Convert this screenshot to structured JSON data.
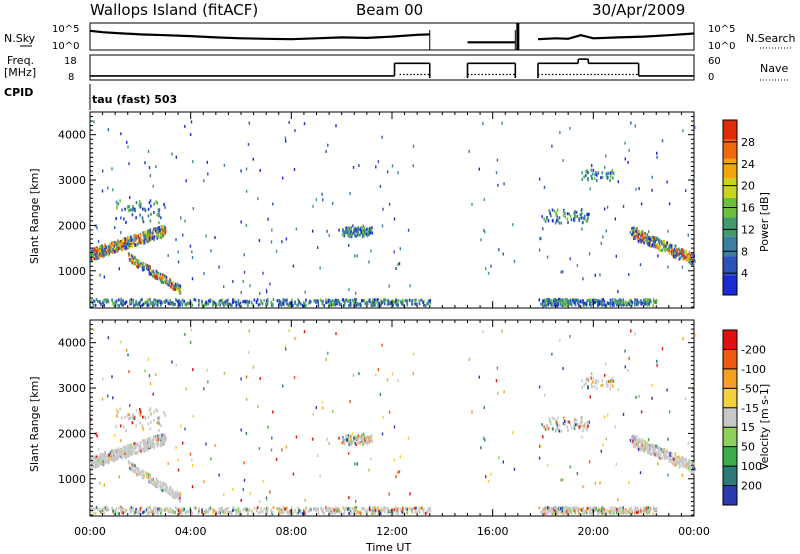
{
  "header": {
    "title": "Wallops Island (fitACF)",
    "beam": "Beam 00",
    "date": "30/Apr/2009"
  },
  "colors": {
    "power_scale": [
      "#1a2bd6",
      "#2f53b8",
      "#3b7ea0",
      "#3f9a6e",
      "#6dbf3c",
      "#c8d51b",
      "#f2a40a",
      "#f06a0a",
      "#e02a0a"
    ],
    "velocity_scale": [
      "#e01010",
      "#f05a10",
      "#f5a020",
      "#f2d040",
      "#c8c8c8",
      "#8fd05a",
      "#3fae4a",
      "#2a7a7a",
      "#2a3ab0"
    ],
    "velocity_ground": "#c8c8c8"
  },
  "chart_data": [
    {
      "type": "line",
      "name": "n-sky-n-search",
      "left_label": "N.Sky",
      "right_label": "N.Search",
      "left_ticks": [
        "10^5",
        "10^0"
      ],
      "right_ticks": [
        "10^5",
        "10^0"
      ],
      "x_range": [
        0,
        24
      ],
      "segments": [
        {
          "x": [
            0.0,
            0.5,
            1.0,
            2.0,
            3.0,
            4.0,
            5.0,
            6.0,
            7.0,
            8.0,
            9.0,
            10.0,
            11.0,
            12.0,
            13.0,
            13.5
          ],
          "y": [
            3.9,
            3.6,
            3.4,
            3.1,
            2.9,
            2.7,
            2.4,
            2.2,
            2.1,
            2.0,
            2.2,
            2.4,
            2.3,
            2.6,
            3.0,
            3.1
          ]
        },
        {
          "x": [
            15.0,
            16.0,
            16.9
          ],
          "y": [
            1.3,
            1.3,
            1.3
          ]
        },
        {
          "x": [
            17.8,
            18.5,
            19.0,
            19.5,
            20.0,
            21.0,
            22.0,
            23.0,
            24.0
          ],
          "y": [
            2.0,
            2.2,
            2.1,
            2.9,
            2.2,
            2.4,
            2.6,
            2.9,
            3.3
          ]
        }
      ],
      "spike_x": 17.0
    },
    {
      "type": "line",
      "name": "frequency-nave",
      "left_label": "Freq.",
      "left_unit": "[MHz]",
      "right_label": "Nave",
      "left_ticks": [
        "18",
        "8"
      ],
      "right_ticks": [
        "60",
        "0"
      ],
      "x_range": [
        0,
        24
      ],
      "freq_segments": [
        {
          "x": [
            0.0,
            12.1
          ],
          "y": [
            9.0,
            9.0
          ]
        },
        {
          "x": [
            12.1,
            13.5
          ],
          "y": [
            15.0,
            15.0
          ]
        },
        {
          "x": [
            15.0,
            16.9
          ],
          "y": [
            15.0,
            15.0
          ]
        },
        {
          "x": [
            17.8,
            19.4
          ],
          "y": [
            15.0,
            15.0
          ]
        },
        {
          "x": [
            19.4,
            19.8
          ],
          "y": [
            17.0,
            17.0
          ]
        },
        {
          "x": [
            19.8,
            21.8
          ],
          "y": [
            15.0,
            15.0
          ]
        },
        {
          "x": [
            21.8,
            24.0
          ],
          "y": [
            9.0,
            9.0
          ]
        }
      ],
      "nave_segments": [
        {
          "x": [
            12.3,
            13.5
          ],
          "y": [
            10,
            10
          ]
        },
        {
          "x": [
            15.0,
            16.9
          ],
          "y": [
            10,
            10
          ]
        },
        {
          "x": [
            17.8,
            21.8
          ],
          "y": [
            10,
            10
          ]
        }
      ]
    },
    {
      "type": "heatmap",
      "name": "power",
      "cpid_label": "CPID",
      "cpid_text": "tau (fast) 503",
      "ylabel": "Slant Range [km]",
      "ylim": [
        180,
        4500
      ],
      "yticks": [
        1000,
        2000,
        3000,
        4000
      ],
      "colorbar_label": "Power [dB]",
      "colorbar_ticks": [
        "4",
        "8",
        "12",
        "16",
        "20",
        "24",
        "28"
      ],
      "colorbar_range": [
        0,
        30
      ]
    },
    {
      "type": "heatmap",
      "name": "velocity",
      "ylabel": "Slant Range [km]",
      "xlabel": "Time UT",
      "ylim": [
        180,
        4500
      ],
      "yticks": [
        1000,
        2000,
        3000,
        4000
      ],
      "xticks": [
        "00:00",
        "04:00",
        "08:00",
        "12:00",
        "16:00",
        "20:00",
        "00:00"
      ],
      "colorbar_label": "Velocity [m s-1]",
      "colorbar_ticks": [
        "200",
        "100",
        "50",
        "15",
        "-15",
        "-50",
        "-100",
        "-200"
      ]
    }
  ]
}
